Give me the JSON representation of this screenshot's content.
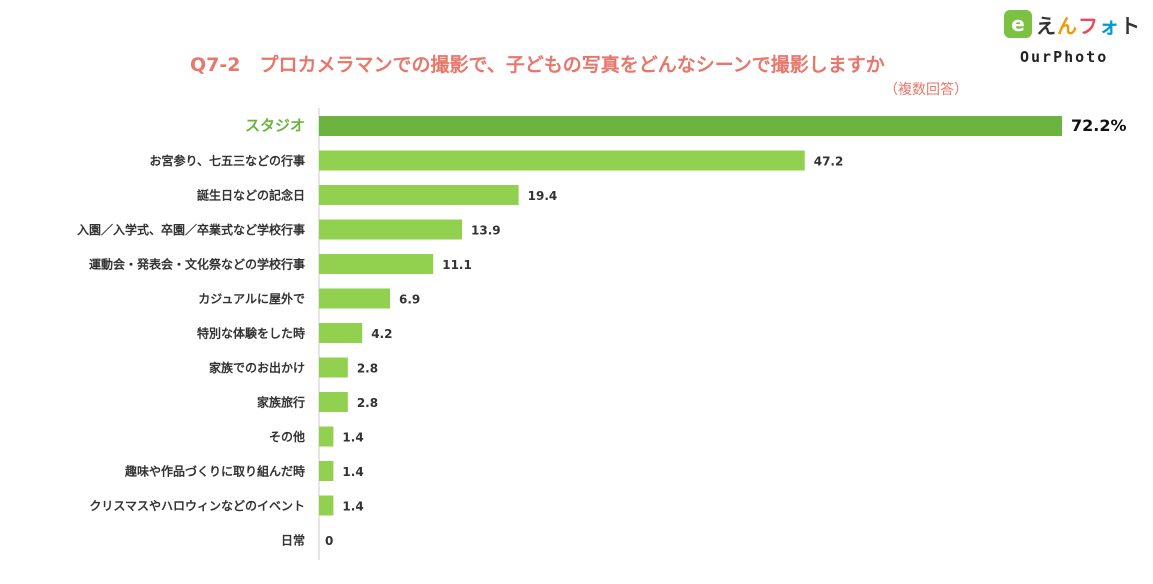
{
  "logo": {
    "badge": "e",
    "name_parts": [
      "え",
      "ん",
      "フ",
      "ォ",
      "ト"
    ],
    "sub": "OurPhoto"
  },
  "chart_data": {
    "type": "bar",
    "orientation": "horizontal",
    "title": "Q7-2　プロカメラマンでの撮影で、子どもの写真をどんなシーンで撮影しますか",
    "subtitle": "（複数回答）",
    "categories": [
      "スタジオ",
      "お宮参り、七五三などの行事",
      "誕生日などの記念日",
      "入園／入学式、卒園／卒業式など学校行事",
      "運動会・発表会・文化祭などの学校行事",
      "カジュアルに屋外で",
      "特別な体験をした時",
      "家族でのお出かけ",
      "家族旅行",
      "その他",
      "趣味や作品づくりに取り組んだ時",
      "クリスマスやハロウィンなどのイベント",
      "日常"
    ],
    "values": [
      72.2,
      47.2,
      19.4,
      13.9,
      11.1,
      6.9,
      4.2,
      2.8,
      2.8,
      1.4,
      1.4,
      1.4,
      0
    ],
    "value_labels": [
      "72.2%",
      "47.2",
      "19.4",
      "13.9",
      "11.1",
      "6.9",
      "4.2",
      "2.8",
      "2.8",
      "1.4",
      "1.4",
      "1.4",
      "0"
    ],
    "highlight_index": 0,
    "xlim": [
      0,
      72.2
    ],
    "colors": {
      "highlight": "#6db33f",
      "bar": "#92d050",
      "highlight_label": "#6db33f",
      "label": "#333333",
      "axis": "#cccccc"
    },
    "grid": false,
    "legend": "none"
  }
}
